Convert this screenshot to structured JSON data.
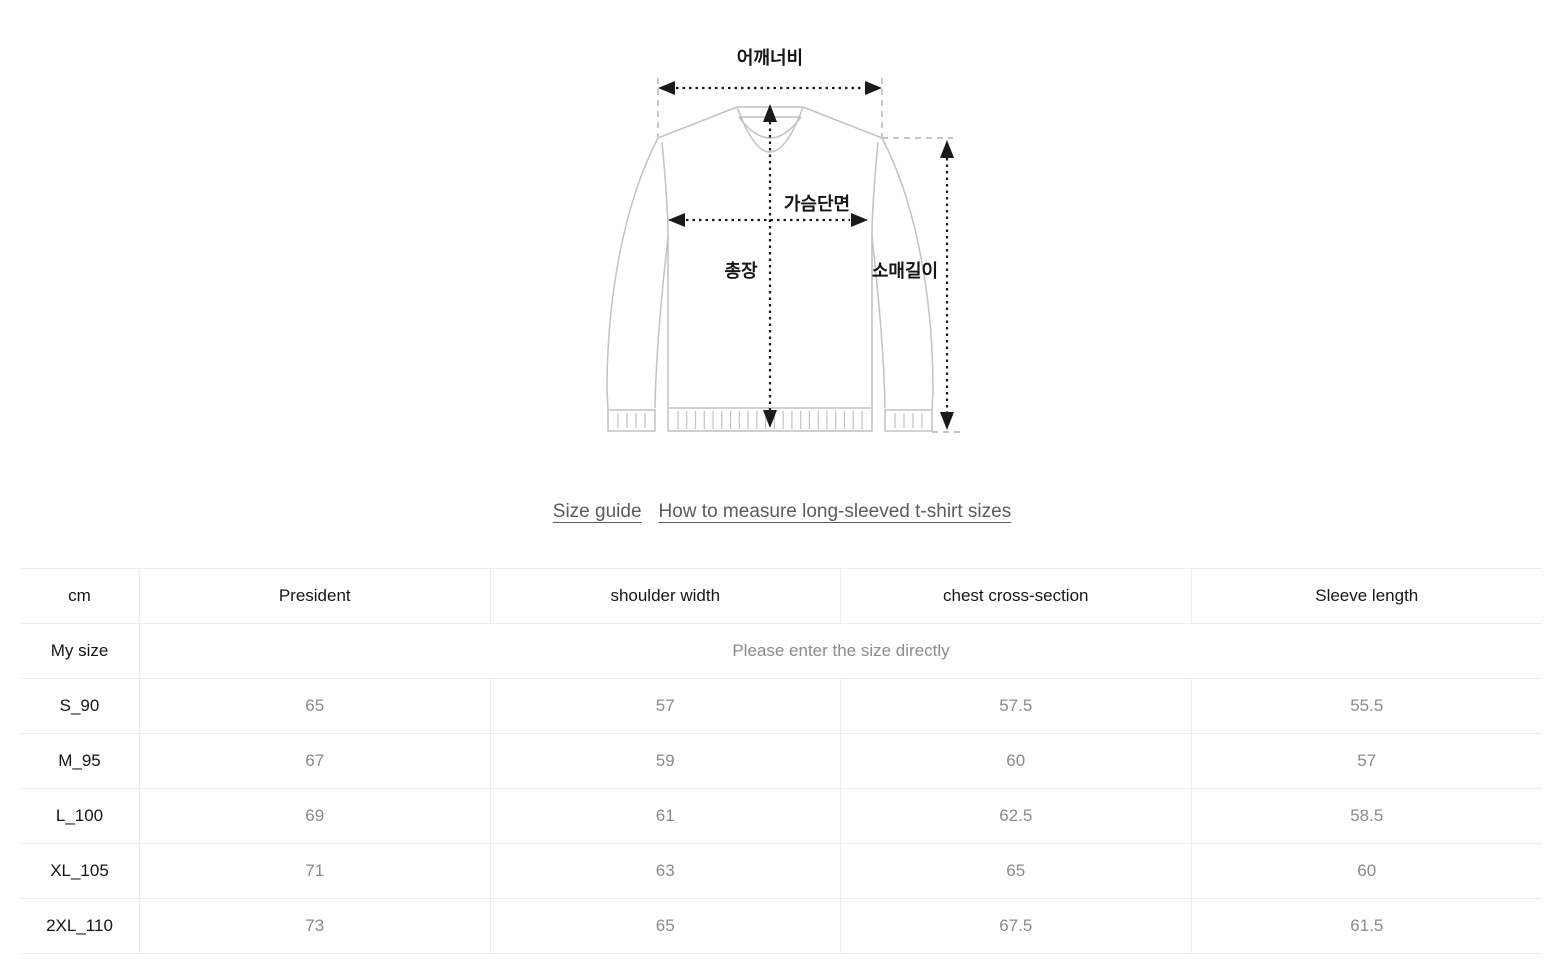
{
  "diagram": {
    "labels": {
      "shoulder_width": "어깨너비",
      "chest_cross_section": "가슴단면",
      "total_length": "총장",
      "sleeve_length": "소매길이"
    }
  },
  "links": {
    "size_guide": "Size guide",
    "how_to_measure": "How to measure long-sleeved t-shirt sizes"
  },
  "table": {
    "unit_header": "cm",
    "columns": [
      "President",
      "shoulder width",
      "chest cross-section",
      "Sleeve length"
    ],
    "my_size": {
      "label": "My size",
      "placeholder": "Please enter the size directly"
    },
    "rows": [
      {
        "size": "S_90",
        "values": [
          "65",
          "57",
          "57.5",
          "55.5"
        ]
      },
      {
        "size": "M_95",
        "values": [
          "67",
          "59",
          "60",
          "57"
        ]
      },
      {
        "size": "L_100",
        "values": [
          "69",
          "61",
          "62.5",
          "58.5"
        ]
      },
      {
        "size": "XL_105",
        "values": [
          "71",
          "63",
          "65",
          "60"
        ]
      },
      {
        "size": "2XL_110",
        "values": [
          "73",
          "65",
          "67.5",
          "61.5"
        ]
      }
    ]
  },
  "colors": {
    "text_primary": "#161616",
    "text_secondary": "#8b8b8b",
    "link": "#5c5c5c",
    "border": "#ededed",
    "divider": "#ededed",
    "outline": "#c2c2c2",
    "guide": "#b2b2b2",
    "arrow": "#1a1a1a"
  }
}
